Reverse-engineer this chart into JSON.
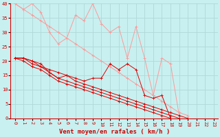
{
  "background_color": "#c8f0f0",
  "grid_color": "#b0d8d8",
  "line_color_dark": "#dd0000",
  "line_color_light": "#ff9999",
  "xlabel": "Vent moyen/en rafales ( km/h )",
  "xlabel_color": "#cc0000",
  "xlabel_fontsize": 6.5,
  "tick_color": "#cc0000",
  "tick_fontsize": 5,
  "xlim": [
    -0.5,
    23.5
  ],
  "ylim": [
    0,
    40
  ],
  "yticks": [
    0,
    5,
    10,
    15,
    20,
    25,
    30,
    35,
    40
  ],
  "xticks": [
    0,
    1,
    2,
    3,
    4,
    5,
    6,
    7,
    8,
    9,
    10,
    11,
    12,
    13,
    14,
    15,
    16,
    17,
    18,
    19,
    20,
    21,
    22,
    23
  ],
  "series_light": [
    [
      40,
      38,
      40,
      37,
      30,
      26,
      28,
      36,
      34,
      40,
      33,
      30,
      32,
      21,
      32,
      21,
      8,
      21,
      19,
      1,
      null,
      null,
      null,
      null
    ],
    [
      40,
      38,
      36,
      34,
      32,
      30,
      28,
      26,
      24,
      22,
      20,
      18,
      16,
      14,
      12,
      10,
      8,
      6,
      4,
      2,
      1,
      null,
      null,
      null
    ]
  ],
  "series_dark": [
    [
      21,
      21,
      20,
      19,
      16,
      14,
      15,
      14,
      13,
      14,
      14,
      19,
      17,
      19,
      17,
      8,
      7,
      8,
      0,
      null,
      null,
      null,
      null,
      null
    ],
    [
      21,
      21,
      20,
      18,
      17,
      16,
      15,
      13,
      12,
      11,
      10,
      9,
      8,
      7,
      6,
      5,
      4,
      3,
      2,
      1,
      0,
      null,
      null,
      null
    ],
    [
      21,
      21,
      19,
      18,
      16,
      14,
      13,
      12,
      11,
      10,
      9,
      8,
      7,
      6,
      5,
      4,
      3,
      2,
      1,
      0,
      null,
      null,
      null,
      null
    ],
    [
      21,
      20,
      18,
      17,
      15,
      13,
      12,
      11,
      10,
      9,
      8,
      7,
      6,
      5,
      4,
      3,
      2,
      1,
      0,
      null,
      null,
      null,
      null,
      null
    ]
  ]
}
